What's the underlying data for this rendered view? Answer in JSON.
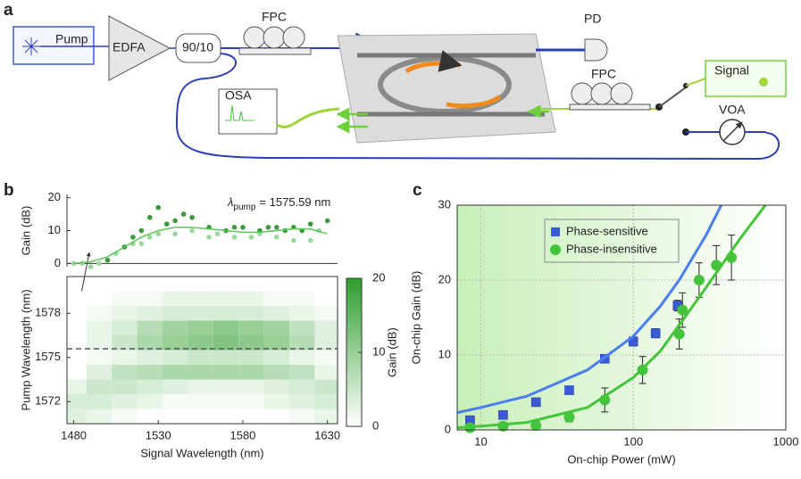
{
  "panel_labels": [
    "a",
    "b",
    "c"
  ],
  "diagram": {
    "labels": {
      "pump": "Pump",
      "edfa": "EDFA",
      "coupler": "90/10",
      "fpc1": "FPC",
      "pd": "PD",
      "osa": "OSA",
      "fpc2": "FPC",
      "signal": "Signal",
      "voa": "VOA"
    }
  },
  "chart_data": [
    {
      "type": "scatter",
      "ylabel": "Gain (dB)",
      "annotation": {
        "symbol": "λ",
        "subscript": "pump",
        "text": "= 1575.59 nm"
      },
      "xlim": [
        1476,
        1636
      ],
      "ylim": [
        -1,
        21
      ],
      "yticks": [
        0,
        10,
        20
      ],
      "series": [
        {
          "color": "#3a9a3a",
          "marker": "circle",
          "x": [
            1500,
            1510,
            1515,
            1520,
            1525,
            1530,
            1535,
            1540,
            1545,
            1550,
            1560,
            1570,
            1575,
            1580,
            1590,
            1595,
            1600,
            1605,
            1610,
            1615,
            1620,
            1630
          ],
          "values": [
            1,
            5,
            8,
            10,
            14,
            17,
            12,
            13,
            15,
            14,
            11,
            10,
            11,
            11,
            10,
            11,
            11,
            10,
            11,
            10,
            12,
            13
          ]
        },
        {
          "color": "#9ad99a",
          "marker": "circle",
          "x": [
            1480,
            1485,
            1490,
            1495,
            1505,
            1515,
            1520,
            1525,
            1530,
            1540,
            1550,
            1560,
            1565,
            1575,
            1585,
            1590,
            1600,
            1610,
            1620,
            1625
          ],
          "values": [
            0,
            0,
            -1,
            0,
            3,
            6,
            6,
            8,
            9,
            9,
            10,
            8,
            9,
            8,
            8,
            9,
            8,
            7,
            7,
            10
          ]
        },
        {
          "color": "#5cc45c",
          "marker": "line",
          "x": [
            1480,
            1490,
            1500,
            1510,
            1520,
            1530,
            1540,
            1550,
            1560,
            1570,
            1580,
            1590,
            1600,
            1610,
            1620,
            1630
          ],
          "values": [
            0,
            0.5,
            2,
            5,
            8,
            10,
            11,
            11,
            10.5,
            10,
            9.5,
            9.5,
            10,
            10.5,
            10.5,
            9
          ]
        }
      ]
    },
    {
      "type": "heatmap",
      "xlabel": "Signal Wavelength (nm)",
      "ylabel": "Pump Wavelength (nm)",
      "xlim": [
        1476,
        1636
      ],
      "ylim": [
        1570.5,
        1580.5
      ],
      "xticks": [
        1480,
        1530,
        1580,
        1630
      ],
      "yticks": [
        1572,
        1575,
        1578
      ],
      "x": [
        1480,
        1495,
        1510,
        1525,
        1540,
        1555,
        1570,
        1585,
        1600,
        1615,
        1630
      ],
      "y": [
        1571,
        1572,
        1573,
        1574,
        1575,
        1576,
        1577,
        1578,
        1579
      ],
      "values": [
        [
          3,
          2,
          1,
          0,
          0,
          0,
          0,
          0,
          0,
          1,
          2
        ],
        [
          4,
          4,
          3,
          2,
          1,
          1,
          1,
          1,
          2,
          3,
          4
        ],
        [
          2,
          5,
          5,
          4,
          3,
          2,
          2,
          2,
          3,
          4,
          5
        ],
        [
          0,
          3,
          6,
          7,
          8,
          8,
          8,
          8,
          7,
          6,
          2
        ],
        [
          0,
          1,
          2,
          3,
          4,
          5,
          5,
          5,
          4,
          2,
          1
        ],
        [
          0,
          2,
          5,
          8,
          10,
          11,
          12,
          11,
          10,
          7,
          3
        ],
        [
          0,
          2,
          4,
          7,
          9,
          10,
          11,
          10,
          9,
          6,
          3
        ],
        [
          0,
          1,
          2,
          3,
          4,
          4,
          4,
          4,
          3,
          2,
          1
        ],
        [
          0,
          0,
          1,
          1,
          2,
          2,
          2,
          2,
          1,
          1,
          0
        ]
      ],
      "reference_y": 1575.59,
      "colorbar": {
        "label": "Gain (dB)",
        "lim": [
          0,
          20
        ],
        "ticks": [
          0,
          10,
          20
        ],
        "color": "#2e9e2e"
      }
    },
    {
      "type": "scatter",
      "xlabel": "On-chip Power (mW)",
      "ylabel": "On-chip Gain (dB)",
      "log_x": true,
      "xlim": [
        7,
        1000
      ],
      "ylim": [
        0,
        30
      ],
      "xticks": [
        10,
        100,
        1000
      ],
      "yticks": [
        0,
        10,
        20,
        30
      ],
      "grid": true,
      "legend": "upper left",
      "series": [
        {
          "name": "Phase-sensitive",
          "color": "#3b5bd6",
          "marker": "square",
          "x": [
            8.5,
            14,
            23,
            38,
            65,
            100,
            140,
            195
          ],
          "values": [
            1.3,
            2,
            3.7,
            5.3,
            9.5,
            11.8,
            12.9,
            16.6
          ],
          "errors": [
            0.4,
            0.4,
            0.4,
            0.4,
            0.5,
            0.6,
            0.6,
            0.7
          ]
        },
        {
          "name": "Phase-insensitive",
          "color": "#44c43a",
          "marker": "circle",
          "x": [
            8.5,
            14,
            23,
            38,
            65,
            115,
            200,
            210,
            270,
            350,
            440
          ],
          "values": [
            0.3,
            0.5,
            0.6,
            1.7,
            4,
            8,
            12.8,
            16,
            20,
            22,
            23
          ],
          "errors": [
            0.5,
            0.5,
            0.5,
            0.6,
            1.6,
            1.8,
            2,
            2.3,
            2.3,
            2.6,
            3
          ]
        },
        {
          "color": "#4a7ef0",
          "marker": "line",
          "x": [
            7,
            10,
            20,
            50,
            100,
            150,
            200,
            300,
            400
          ],
          "values": [
            2.3,
            3,
            4.5,
            8,
            12.5,
            16.5,
            20,
            26,
            31
          ]
        },
        {
          "color": "#44c43a",
          "marker": "line",
          "x": [
            7,
            10,
            20,
            50,
            100,
            150,
            200,
            300,
            500,
            800
          ],
          "values": [
            0.3,
            0.5,
            1,
            3,
            7,
            10.5,
            14,
            19,
            25.5,
            31
          ]
        }
      ]
    }
  ]
}
